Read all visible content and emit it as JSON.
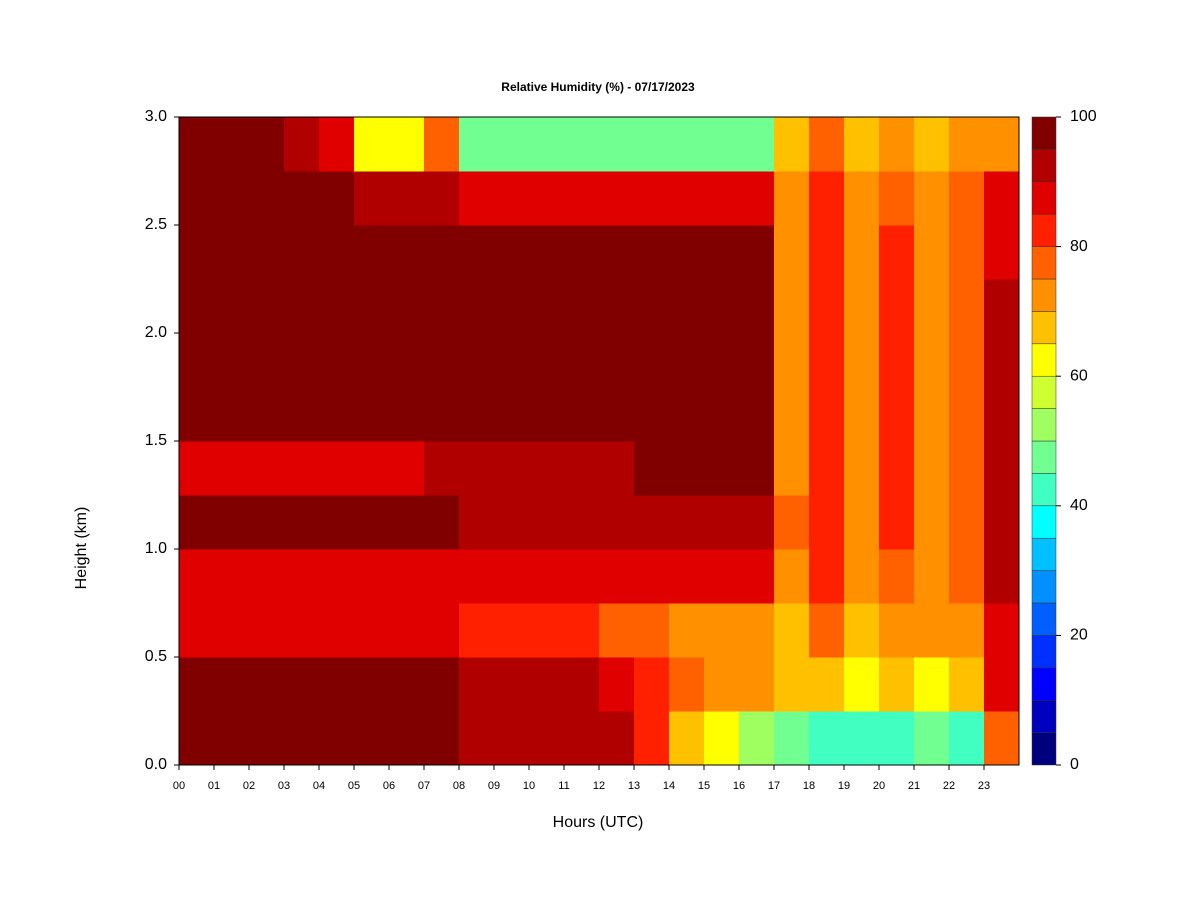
{
  "chart_data": {
    "type": "heatmap",
    "title": "Relative Humidity (%) - 07/17/2023",
    "xlabel": "Hours (UTC)",
    "ylabel": "Height (km)",
    "xlim": [
      0,
      24
    ],
    "ylim": [
      0,
      3.0
    ],
    "xticks": [
      {
        "value": 0,
        "label": "00"
      },
      {
        "value": 1,
        "label": "01"
      },
      {
        "value": 2,
        "label": "02"
      },
      {
        "value": 3,
        "label": "03"
      },
      {
        "value": 4,
        "label": "04"
      },
      {
        "value": 5,
        "label": "05"
      },
      {
        "value": 6,
        "label": "06"
      },
      {
        "value": 7,
        "label": "07"
      },
      {
        "value": 8,
        "label": "08"
      },
      {
        "value": 9,
        "label": "09"
      },
      {
        "value": 10,
        "label": "10"
      },
      {
        "value": 11,
        "label": "11"
      },
      {
        "value": 12,
        "label": "12"
      },
      {
        "value": 13,
        "label": "13"
      },
      {
        "value": 14,
        "label": "14"
      },
      {
        "value": 15,
        "label": "15"
      },
      {
        "value": 16,
        "label": "16"
      },
      {
        "value": 17,
        "label": "17"
      },
      {
        "value": 18,
        "label": "18"
      },
      {
        "value": 19,
        "label": "19"
      },
      {
        "value": 20,
        "label": "20"
      },
      {
        "value": 21,
        "label": "21"
      },
      {
        "value": 22,
        "label": "22"
      },
      {
        "value": 23,
        "label": "23"
      }
    ],
    "yticks": [
      {
        "value": 0,
        "label": "0.0"
      },
      0.5,
      {
        "value": 1,
        "label": "1.0"
      },
      1.5,
      {
        "value": 2,
        "label": "2.0"
      },
      2.5,
      {
        "value": 3,
        "label": "3.0"
      }
    ],
    "x_edges": [
      0,
      1,
      2,
      3,
      4,
      5,
      6,
      7,
      8,
      9,
      10,
      11,
      12,
      13,
      14,
      15,
      16,
      17,
      18,
      19,
      20,
      21,
      22,
      23,
      24
    ],
    "y_edges": [
      0,
      0.25,
      0.5,
      0.75,
      1.0,
      1.25,
      1.5,
      1.75,
      2.0,
      2.25,
      2.5,
      2.75,
      3.0
    ],
    "z": [
      [
        95,
        95,
        95,
        95,
        95,
        95,
        95,
        95,
        92,
        92,
        92,
        92,
        92,
        80,
        65,
        60,
        50,
        45,
        40,
        42,
        40,
        45,
        42,
        75
      ],
      [
        97,
        97,
        97,
        97,
        97,
        97,
        97,
        97,
        90,
        90,
        90,
        90,
        88,
        80,
        75,
        72,
        72,
        65,
        68,
        62,
        66,
        64,
        68,
        85
      ],
      [
        85,
        85,
        85,
        85,
        85,
        85,
        85,
        85,
        82,
        82,
        82,
        82,
        78,
        78,
        72,
        72,
        72,
        68,
        75,
        66,
        74,
        70,
        72,
        88
      ],
      [
        88,
        88,
        88,
        88,
        88,
        88,
        88,
        88,
        87,
        87,
        87,
        87,
        87,
        85,
        85,
        85,
        85,
        72,
        80,
        70,
        78,
        74,
        76,
        90
      ],
      [
        95,
        95,
        95,
        95,
        95,
        95,
        95,
        95,
        93,
        93,
        93,
        93,
        93,
        93,
        93,
        93,
        93,
        75,
        82,
        72,
        80,
        74,
        78,
        90
      ],
      [
        88,
        88,
        88,
        88,
        88,
        88,
        88,
        92,
        92,
        92,
        92,
        92,
        92,
        97,
        97,
        97,
        97,
        74,
        82,
        72,
        80,
        74,
        78,
        90
      ],
      [
        98,
        98,
        98,
        98,
        98,
        98,
        98,
        98,
        98,
        98,
        98,
        98,
        98,
        98,
        98,
        98,
        98,
        74,
        82,
        72,
        80,
        74,
        78,
        90
      ],
      [
        98,
        98,
        98,
        98,
        98,
        98,
        98,
        98,
        98,
        98,
        98,
        98,
        98,
        98,
        98,
        98,
        98,
        74,
        82,
        72,
        80,
        74,
        78,
        90
      ],
      [
        98,
        98,
        98,
        98,
        98,
        98,
        98,
        98,
        98,
        98,
        98,
        98,
        98,
        98,
        98,
        98,
        98,
        74,
        82,
        72,
        80,
        74,
        78,
        90
      ],
      [
        98,
        98,
        98,
        98,
        98,
        98,
        98,
        98,
        98,
        98,
        98,
        98,
        98,
        98,
        98,
        98,
        98,
        74,
        82,
        72,
        80,
        74,
        78,
        88
      ],
      [
        98,
        98,
        98,
        98,
        98,
        92,
        92,
        92,
        88,
        88,
        88,
        88,
        88,
        88,
        88,
        88,
        88,
        72,
        80,
        70,
        78,
        72,
        76,
        85
      ],
      [
        98,
        98,
        98,
        90,
        85,
        62,
        62,
        75,
        45,
        45,
        45,
        45,
        45,
        45,
        45,
        45,
        45,
        68,
        75,
        65,
        72,
        68,
        70,
        70
      ]
    ],
    "levels": [
      0,
      5,
      10,
      15,
      20,
      25,
      30,
      35,
      40,
      45,
      50,
      55,
      60,
      65,
      70,
      75,
      80,
      85,
      90,
      95,
      100
    ],
    "colors": [
      "#00007f",
      "#0000bf",
      "#0000ff",
      "#0030ff",
      "#0060ff",
      "#0090ff",
      "#00c0ff",
      "#00ffff",
      "#40ffc0",
      "#70ff90",
      "#a0ff60",
      "#d0ff30",
      "#ffff00",
      "#ffc000",
      "#ff9000",
      "#ff6000",
      "#ff2000",
      "#e00000",
      "#b00000",
      "#800000"
    ],
    "colorbar_ticks": [
      0,
      20,
      40,
      60,
      80,
      100
    ]
  }
}
